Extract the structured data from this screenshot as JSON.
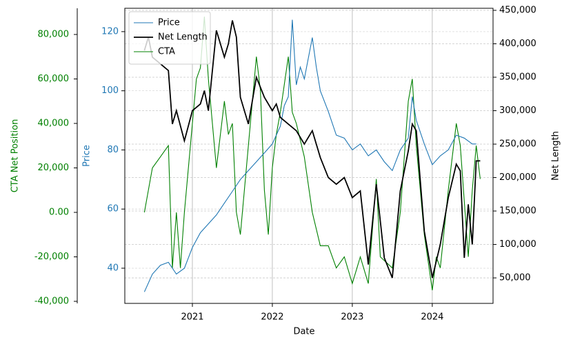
{
  "chart_data": {
    "type": "line",
    "xlabel": "Date",
    "ylabel": "Price",
    "y2label": "Net Length",
    "y3label": "CTA Net Position",
    "xlim": [
      2020.155,
      2024.76
    ],
    "xticks": [
      2021,
      2022,
      2023,
      2024
    ],
    "ylim": [
      28.1,
      127.9
    ],
    "yticks": [
      40,
      60,
      80,
      100,
      120
    ],
    "ycolor": "#1f77b4",
    "y2lim": [
      11900,
      453100
    ],
    "y2ticks": [
      {
        "value": 50000,
        "label": "50,000"
      },
      {
        "value": 100000,
        "label": "100,000"
      },
      {
        "value": 150000,
        "label": "150,000"
      },
      {
        "value": 200000,
        "label": "200,000"
      },
      {
        "value": 250000,
        "label": "250,000"
      },
      {
        "value": 300000,
        "label": "300,000"
      },
      {
        "value": 350000,
        "label": "350,000"
      },
      {
        "value": 400000,
        "label": "400,000"
      },
      {
        "value": 450000,
        "label": "450,000"
      }
    ],
    "y3lim": [
      -40930,
      91780
    ],
    "y3ticks": [
      {
        "value": -40000,
        "label": "-40,000"
      },
      {
        "value": -20000,
        "label": "-20,000"
      },
      {
        "value": 0,
        "label": "0.00"
      },
      {
        "value": 20000,
        "label": "20,000"
      },
      {
        "value": 40000,
        "label": "40,000"
      },
      {
        "value": 60000,
        "label": "60,000"
      },
      {
        "value": 80000,
        "label": "80,000"
      }
    ],
    "y3color": "#008000",
    "grid": true,
    "legend": "upper left",
    "series": [
      {
        "name": "Price",
        "color": "#1f77b4",
        "axis": "y",
        "x": [
          2020.4,
          2020.5,
          2020.6,
          2020.7,
          2020.8,
          2020.9,
          2021.0,
          2021.1,
          2021.2,
          2021.3,
          2021.4,
          2021.5,
          2021.6,
          2021.7,
          2021.8,
          2021.9,
          2022.0,
          2022.1,
          2022.15,
          2022.2,
          2022.25,
          2022.3,
          2022.35,
          2022.4,
          2022.5,
          2022.55,
          2022.6,
          2022.7,
          2022.8,
          2022.9,
          2023.0,
          2023.1,
          2023.2,
          2023.3,
          2023.4,
          2023.5,
          2023.6,
          2023.7,
          2023.75,
          2023.8,
          2023.9,
          2024.0,
          2024.1,
          2024.2,
          2024.3,
          2024.4,
          2024.5,
          2024.55
        ],
        "values": [
          32,
          38,
          41,
          42,
          38,
          40,
          47,
          52,
          55,
          58,
          62,
          66,
          70,
          73,
          76,
          79,
          82,
          88,
          95,
          98,
          124,
          102,
          108,
          104,
          118,
          108,
          100,
          93,
          85,
          84,
          80,
          82,
          78,
          80,
          76,
          73,
          80,
          84,
          98,
          90,
          82,
          75,
          78,
          80,
          85,
          84,
          82,
          82
        ]
      },
      {
        "name": "Net Length",
        "color": "#000000",
        "axis": "y2",
        "x": [
          2020.4,
          2020.45,
          2020.5,
          2020.6,
          2020.7,
          2020.75,
          2020.8,
          2020.9,
          2021.0,
          2021.1,
          2021.15,
          2021.2,
          2021.3,
          2021.4,
          2021.45,
          2021.5,
          2021.55,
          2021.6,
          2021.7,
          2021.8,
          2021.9,
          2022.0,
          2022.05,
          2022.1,
          2022.2,
          2022.3,
          2022.4,
          2022.5,
          2022.6,
          2022.7,
          2022.8,
          2022.9,
          2023.0,
          2023.1,
          2023.2,
          2023.3,
          2023.4,
          2023.5,
          2023.6,
          2023.7,
          2023.75,
          2023.8,
          2023.9,
          2024.0,
          2024.1,
          2024.2,
          2024.3,
          2024.35,
          2024.4,
          2024.45,
          2024.5,
          2024.55,
          2024.6
        ],
        "values": [
          390000,
          410000,
          380000,
          370000,
          360000,
          280000,
          300000,
          255000,
          300000,
          310000,
          330000,
          300000,
          420000,
          380000,
          400000,
          435000,
          410000,
          320000,
          280000,
          350000,
          320000,
          300000,
          310000,
          290000,
          280000,
          270000,
          250000,
          270000,
          230000,
          200000,
          190000,
          200000,
          170000,
          180000,
          70000,
          190000,
          80000,
          50000,
          180000,
          240000,
          280000,
          270000,
          120000,
          50000,
          100000,
          170000,
          220000,
          210000,
          80000,
          160000,
          100000,
          225000,
          225000
        ]
      },
      {
        "name": "CTA",
        "color": "#008000",
        "axis": "y3",
        "x": [
          2020.4,
          2020.45,
          2020.5,
          2020.6,
          2020.7,
          2020.75,
          2020.8,
          2020.85,
          2020.9,
          2021.0,
          2021.05,
          2021.1,
          2021.15,
          2021.2,
          2021.3,
          2021.4,
          2021.45,
          2021.5,
          2021.55,
          2021.6,
          2021.7,
          2021.8,
          2021.85,
          2021.9,
          2021.95,
          2022.0,
          2022.05,
          2022.1,
          2022.2,
          2022.25,
          2022.3,
          2022.4,
          2022.5,
          2022.6,
          2022.7,
          2022.8,
          2022.9,
          2023.0,
          2023.1,
          2023.2,
          2023.3,
          2023.35,
          2023.5,
          2023.6,
          2023.7,
          2023.75,
          2023.8,
          2023.9,
          2024.0,
          2024.05,
          2024.1,
          2024.2,
          2024.3,
          2024.35,
          2024.45,
          2024.5,
          2024.55,
          2024.6
        ],
        "values": [
          0,
          10000,
          20000,
          25000,
          30000,
          -25000,
          0,
          -25000,
          0,
          40000,
          60000,
          65000,
          88000,
          60000,
          20000,
          50000,
          35000,
          40000,
          0,
          -10000,
          30000,
          70000,
          55000,
          10000,
          -10000,
          20000,
          35000,
          45000,
          70000,
          45000,
          40000,
          25000,
          0,
          -15000,
          -15000,
          -25000,
          -20000,
          -32000,
          -20000,
          -32000,
          15000,
          -20000,
          -25000,
          0,
          50000,
          60000,
          30000,
          -10000,
          -35000,
          -20000,
          -25000,
          10000,
          40000,
          30000,
          -20000,
          10000,
          30000,
          15000
        ]
      }
    ]
  }
}
